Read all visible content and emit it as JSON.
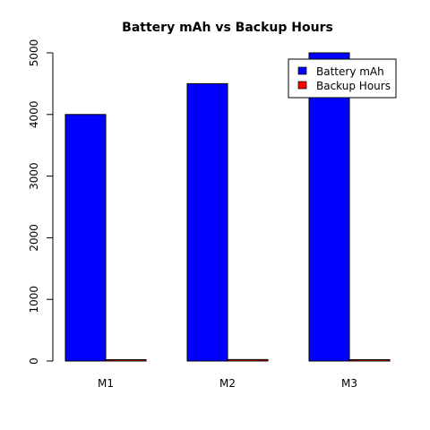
{
  "chart_data": {
    "type": "bar",
    "title": "Battery mAh vs Backup Hours",
    "xlabel": "",
    "ylabel": "",
    "categories": [
      "M1",
      "M2",
      "M3"
    ],
    "series": [
      {
        "name": "Battery mAh",
        "values": [
          4000,
          4500,
          5000
        ],
        "color": "#0000ff"
      },
      {
        "name": "Backup Hours",
        "values": [
          20,
          24,
          22
        ],
        "color": "#ff0000"
      }
    ],
    "ylim": [
      0,
      5000
    ],
    "yticks": [
      "0",
      "1000",
      "2000",
      "3000",
      "4000",
      "5000"
    ],
    "grid": false,
    "legend_position": "top-right",
    "bar_outline": "#000000"
  }
}
